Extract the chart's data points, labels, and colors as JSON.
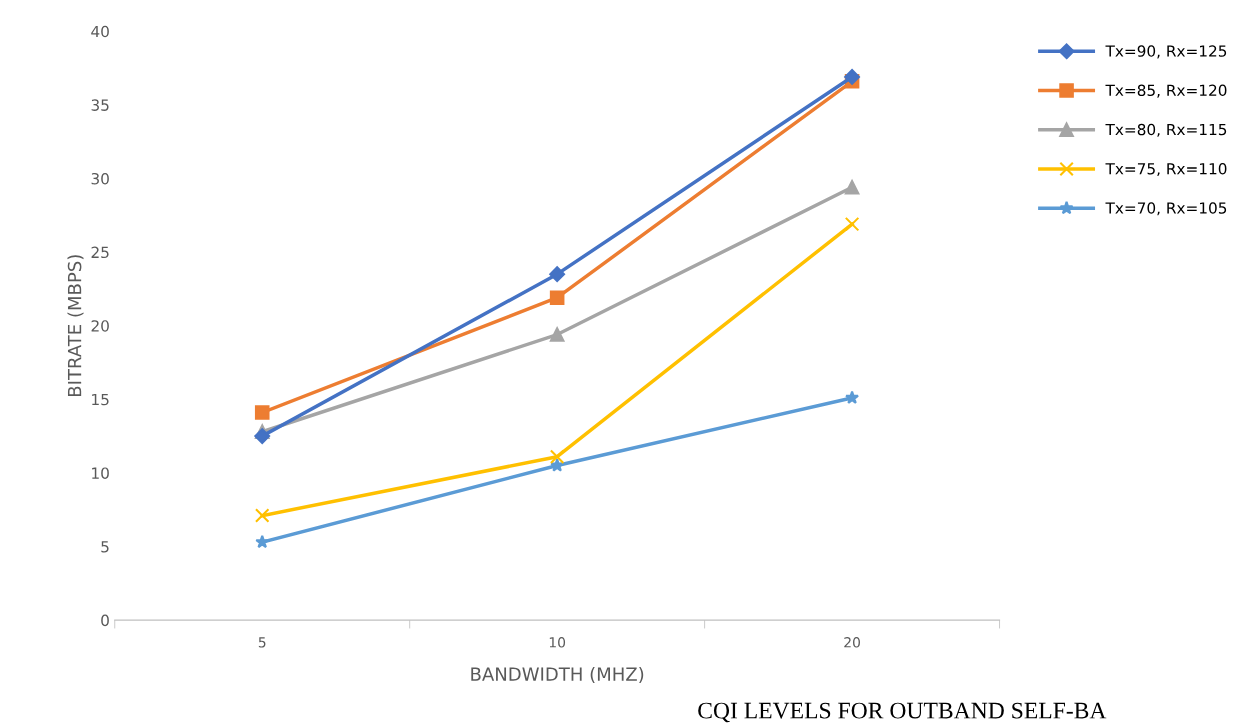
{
  "chart_data": {
    "type": "line",
    "xlabel": "BANDWIDTH (MHZ)",
    "ylabel": "BITRATE (MBPS)",
    "categories": [
      "5",
      "10",
      "20"
    ],
    "series": [
      {
        "name": "Tx=90, Rx=125",
        "color": "#4472c4",
        "marker": "diamond",
        "values": [
          12.5,
          23.5,
          36.9
        ]
      },
      {
        "name": "Tx=85, Rx=120",
        "color": "#ed7d31",
        "marker": "square",
        "values": [
          14.1,
          21.9,
          36.6
        ]
      },
      {
        "name": "Tx=80, Rx=115",
        "color": "#a5a5a5",
        "marker": "triangle",
        "values": [
          12.8,
          19.4,
          29.4
        ]
      },
      {
        "name": "Tx=75, Rx=110",
        "color": "#ffc000",
        "marker": "cross",
        "values": [
          7.1,
          11.1,
          26.9
        ]
      },
      {
        "name": "Tx=70, Rx=105",
        "color": "#5b9bd5",
        "marker": "star",
        "values": [
          5.3,
          10.5,
          15.1
        ]
      }
    ],
    "ylim": [
      0,
      40
    ],
    "yticks": [
      0,
      5,
      10,
      15,
      20,
      25,
      30,
      35,
      40
    ],
    "grid": false,
    "legend": "right",
    "annotations": [
      "CQI LEVELS FOR OUTBAND SELF-BA"
    ]
  }
}
